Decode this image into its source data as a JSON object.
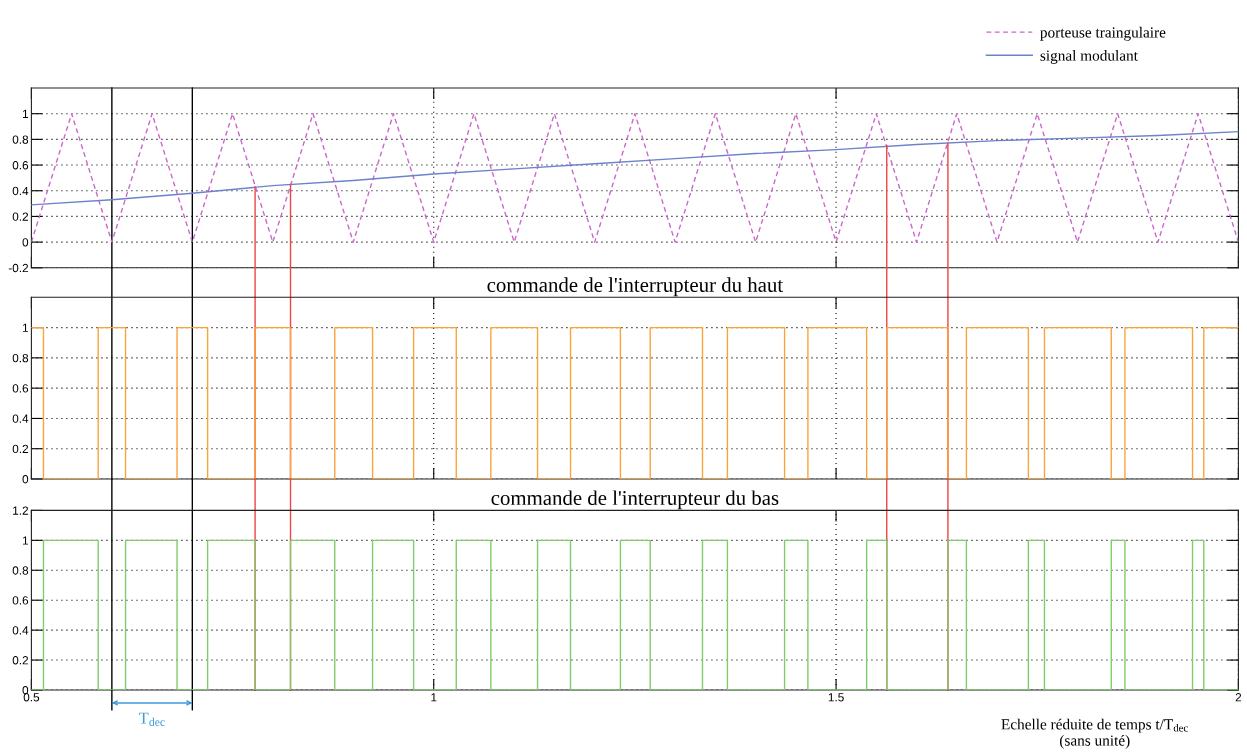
{
  "chart_data": [
    {
      "type": "line",
      "series": [
        {
          "name": "porteuse traingulaire",
          "color": "#cc66cc",
          "line_style": "dashed",
          "x": [
            0.5,
            0.55,
            0.6,
            0.65,
            0.7,
            0.75,
            0.8,
            0.85,
            0.9,
            0.95,
            1,
            1.05,
            1.1,
            1.15,
            1.2,
            1.25,
            1.3,
            1.35,
            1.4,
            1.45,
            1.5,
            1.55,
            1.6,
            1.65,
            1.7,
            1.75,
            1.8,
            1.85,
            1.9,
            1.95,
            2
          ],
          "values": [
            0,
            1,
            0,
            1,
            0,
            1,
            0,
            1,
            0,
            1,
            0,
            1,
            0,
            1,
            0,
            1,
            0,
            1,
            0,
            1,
            0,
            1,
            0,
            1,
            0,
            1,
            0,
            1,
            0,
            1,
            0
          ]
        },
        {
          "name": "signal modulant",
          "color": "#6b82cc",
          "x": [
            0.5,
            0.6,
            0.7,
            0.8,
            0.9,
            1,
            1.1,
            1.2,
            1.3,
            1.4,
            1.5,
            1.6,
            1.7,
            1.8,
            1.9,
            2
          ],
          "values": [
            0.29,
            0.33,
            0.38,
            0.44,
            0.48,
            0.53,
            0.57,
            0.61,
            0.65,
            0.69,
            0.72,
            0.76,
            0.79,
            0.81,
            0.83,
            0.86
          ]
        },
        {
          "color": "#ee4444",
          "x": [
            0.778,
            0.778
          ],
          "values": [
            0.43,
            -0.2
          ]
        },
        {
          "color": "#ee4444",
          "x": [
            0.822,
            0.822
          ],
          "values": [
            0.45,
            -0.2
          ]
        },
        {
          "color": "#ee4444",
          "x": [
            1.563,
            1.563
          ],
          "values": [
            0.75,
            -0.2
          ]
        },
        {
          "color": "#ee4444",
          "x": [
            1.639,
            1.639
          ],
          "values": [
            0.77,
            -0.2
          ]
        }
      ],
      "xlim": [
        0.5,
        2
      ],
      "xticks": [
        0.5,
        1,
        1.5,
        2
      ],
      "ylim": [
        -0.2,
        1.2
      ],
      "yticks": [
        -0.2,
        0,
        0.2,
        0.4,
        0.6,
        0.8,
        1
      ],
      "tick_labels": "y",
      "grid": true,
      "legend": "top right",
      "ref_lines": [
        {
          "axis": "x",
          "value": 0.6,
          "color": "#000000"
        },
        {
          "axis": "x",
          "value": 0.7,
          "color": "#000000"
        }
      ]
    },
    {
      "type": "step",
      "title": "commande de l'interrupteur du haut",
      "series": [
        {
          "color": "#f9a33b",
          "x": [
            0.5,
            0.515,
            0.583,
            0.617,
            0.681,
            0.719,
            0.778,
            0.822,
            0.877,
            0.924,
            0.975,
            1.028,
            1.071,
            1.129,
            1.17,
            1.232,
            1.269,
            1.334,
            1.365,
            1.436,
            1.465,
            1.538,
            1.563,
            1.639,
            1.662,
            1.739,
            1.759,
            1.842,
            1.859,
            1.943,
            1.957,
            2
          ],
          "values": [
            1,
            0,
            1,
            0,
            1,
            0,
            1,
            0,
            1,
            0,
            1,
            0,
            1,
            0,
            1,
            0,
            1,
            0,
            1,
            0,
            1,
            0,
            1,
            0,
            1,
            0,
            1,
            0,
            1,
            0,
            1,
            1
          ]
        }
      ],
      "xlim": [
        0.5,
        2
      ],
      "xticks": [
        0.5,
        1,
        1.5,
        2
      ],
      "ylim": [
        0,
        1.2
      ],
      "yticks": [
        0,
        0.2,
        0.4,
        0.6,
        0.8,
        1
      ],
      "tick_labels": "y",
      "grid": true,
      "ref_lines": [
        {
          "axis": "x",
          "value": 0.6,
          "color": "#000000"
        },
        {
          "axis": "x",
          "value": 0.7,
          "color": "#000000"
        },
        {
          "axis": "x",
          "value": 0.778,
          "color": "#ee4444"
        },
        {
          "axis": "x",
          "value": 0.822,
          "color": "#ee4444"
        },
        {
          "axis": "x",
          "value": 1.563,
          "color": "#ee4444"
        },
        {
          "axis": "x",
          "value": 1.639,
          "color": "#ee4444"
        }
      ]
    },
    {
      "type": "step",
      "title": "commande de l'interrupteur du bas",
      "xlabel": "Echelle réduite de temps t/T$_{dec}$\n(sans unité)",
      "series": [
        {
          "color": "#7fcc6a",
          "x": [
            0.5,
            0.515,
            0.583,
            0.617,
            0.681,
            0.719,
            0.778,
            0.822,
            0.877,
            0.924,
            0.975,
            1.028,
            1.071,
            1.129,
            1.17,
            1.232,
            1.269,
            1.334,
            1.365,
            1.436,
            1.465,
            1.538,
            1.563,
            1.639,
            1.662,
            1.739,
            1.759,
            1.842,
            1.859,
            1.943,
            1.957,
            2
          ],
          "values": [
            0,
            1,
            0,
            1,
            0,
            1,
            0,
            1,
            0,
            1,
            0,
            1,
            0,
            1,
            0,
            1,
            0,
            1,
            0,
            1,
            0,
            1,
            0,
            1,
            0,
            1,
            0,
            1,
            0,
            1,
            0,
            0
          ]
        }
      ],
      "xlim": [
        0.5,
        2
      ],
      "xticks": [
        0.5,
        1,
        1.5,
        2
      ],
      "ylim": [
        0,
        1.2
      ],
      "yticks": [
        0,
        0.2,
        0.4,
        0.6,
        0.8,
        1,
        1.2
      ],
      "grid": true,
      "ref_lines": [
        {
          "axis": "x",
          "value": 0.6,
          "color": "#000000"
        },
        {
          "axis": "x",
          "value": 0.7,
          "color": "#000000"
        },
        {
          "axis": "x",
          "value": 0.778,
          "color": "#ee4444"
        },
        {
          "axis": "x",
          "value": 0.822,
          "color": "#ee4444"
        },
        {
          "axis": "x",
          "value": 1.563,
          "color": "#ee4444"
        },
        {
          "axis": "x",
          "value": 1.639,
          "color": "#ee4444"
        }
      ],
      "annotations": [
        "T$_{dec}$"
      ]
    }
  ]
}
